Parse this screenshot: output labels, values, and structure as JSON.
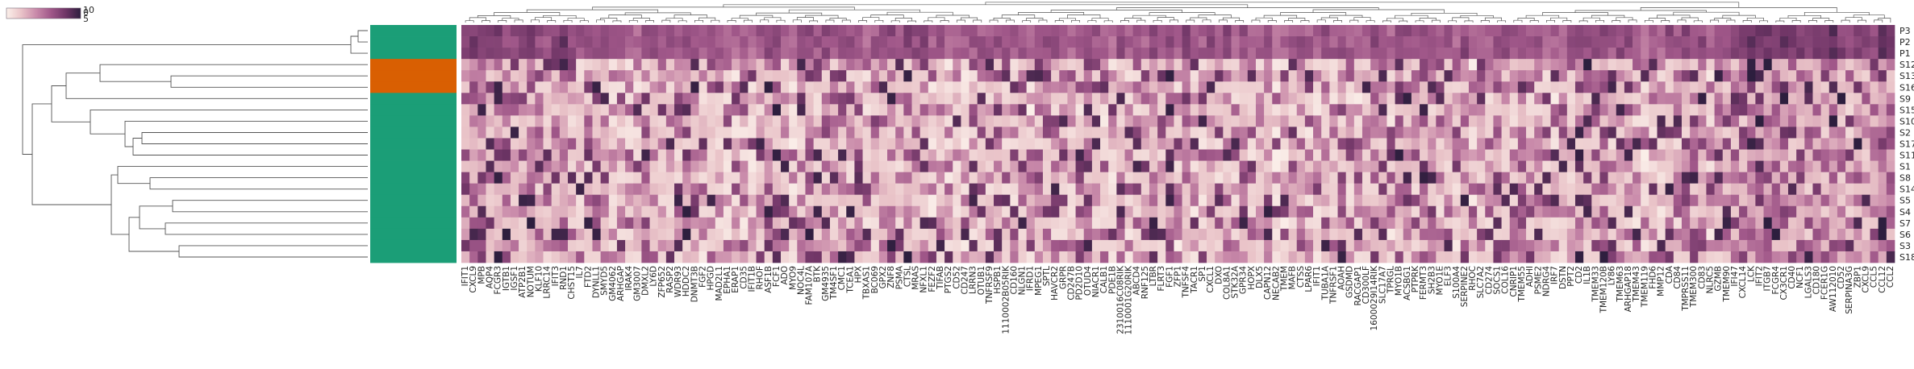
{
  "chart_data": {
    "type": "heatmap",
    "title": "",
    "xlabel": "",
    "ylabel": "",
    "colormap": [
      "#fbf0ea",
      "#e9c3c8",
      "#c98aaa",
      "#a05789",
      "#6f3566",
      "#2d1e3e"
    ],
    "colorbar": {
      "ticks": [
        "10",
        "0",
        "5"
      ],
      "range": [
        0,
        10
      ]
    },
    "row_groups": {
      "colors": [
        "#1b9e77",
        "#d95f02"
      ]
    },
    "rows": [
      {
        "label": "P3",
        "group": 0
      },
      {
        "label": "P2",
        "group": 0
      },
      {
        "label": "P1",
        "group": 0
      },
      {
        "label": "S12",
        "group": 1
      },
      {
        "label": "S13",
        "group": 1
      },
      {
        "label": "S16",
        "group": 1
      },
      {
        "label": "S9",
        "group": 0
      },
      {
        "label": "S15",
        "group": 0
      },
      {
        "label": "S10",
        "group": 0
      },
      {
        "label": "S2",
        "group": 0
      },
      {
        "label": "S17",
        "group": 0
      },
      {
        "label": "S11",
        "group": 0
      },
      {
        "label": "S1",
        "group": 0
      },
      {
        "label": "S8",
        "group": 0
      },
      {
        "label": "S14",
        "group": 0
      },
      {
        "label": "S5",
        "group": 0
      },
      {
        "label": "S4",
        "group": 0
      },
      {
        "label": "S7",
        "group": 0
      },
      {
        "label": "S6",
        "group": 0
      },
      {
        "label": "S3",
        "group": 0
      },
      {
        "label": "S18",
        "group": 0
      }
    ],
    "x_tick_labels": [
      "IFIT1",
      "CXCL9",
      "MPB",
      "AQP4",
      "FCGR3",
      "IGTB1",
      "IGSF1",
      "ATP2B1",
      "NOTUM",
      "KLF10",
      "LRRC14",
      "IFIT3",
      "RND1",
      "CHST15",
      "IL7",
      "FTD2",
      "DYNLL1",
      "SMYD5",
      "GM4062",
      "ARHGAP",
      "IRAK4",
      "GM3007",
      "DMXL2",
      "LY6D",
      "ZFP652",
      "RASP2",
      "WDR93",
      "HDDC2",
      "DNMT3B",
      "FGF2",
      "HPGD",
      "MAD2L1",
      "EPHA1",
      "ERAP1",
      "CD35",
      "IFIT1B",
      "RHOF",
      "ASF1B",
      "FCF1",
      "ADO",
      "MYO9",
      "NOC4L",
      "FAM107A",
      "BTK",
      "GM4935",
      "TM4SF1",
      "CMC1",
      "TCEA1",
      "HPX",
      "TBXAS1",
      "BC069",
      "GPX2",
      "ZNF8",
      "PSMA",
      "CTSL",
      "MRAS",
      "NFXL1",
      "FEZF2",
      "TIFAB",
      "PTGS2",
      "CD52",
      "CD247",
      "LRRN3",
      "OTUB1",
      "TNFRSF9",
      "HSPB1",
      "1110002B05RIK",
      "CD160",
      "NLGN1",
      "IFRD1",
      "MPEG1",
      "SPTL",
      "HAVCR2",
      "GRPR",
      "CD247B",
      "PD2D10",
      "OTUD4",
      "NIACR1",
      "CALB1",
      "PDE1B",
      "2310016C08RIK",
      "1110001G20RIK",
      "ABCD4",
      "RNF125",
      "LTBR",
      "FLRT3",
      "FGF1",
      "ZFP1",
      "TNFSF4",
      "TACR1",
      "SP1",
      "CXCL1",
      "DXO",
      "COL8A1",
      "STK32A",
      "GPR34",
      "HOPX",
      "DLX5",
      "CAPN12",
      "NECAB2",
      "TMEM",
      "MAFB",
      "CTSS",
      "LPAR6",
      "IFIT1",
      "TUBA1A",
      "TNFRSF1",
      "AOAH",
      "GSDMD",
      "RACGAP1",
      "CD300LF",
      "1600029I14RIK",
      "SLC17A7",
      "TPRGL",
      "MYO1B",
      "ACSBG1",
      "PTPRK",
      "FERMT3",
      "SH2B3",
      "MYO1E",
      "ELF3",
      "S100A4",
      "SERPINE2",
      "RHOC",
      "SLC7A2",
      "CD274",
      "SOCS1",
      "COL16",
      "CNRIP1",
      "TMEM55",
      "ADHI",
      "PSME2",
      "NDRG4",
      "IRF7",
      "DSTN",
      "PPT2",
      "CD2",
      "IL1B",
      "TMEM33",
      "TMEM120B",
      "LY86",
      "TMEM63",
      "ARHGAP18",
      "TMEM43",
      "TMEM119",
      "FHD6",
      "MMP12",
      "CDA",
      "CD84",
      "TMPRSS11",
      "TMEM300",
      "CD83",
      "NLRC5",
      "GZMB",
      "TMEM90",
      "IFI47",
      "CXCL14",
      "LCK",
      "IFIT2",
      "ITGB7",
      "FCGR4",
      "CX3CR1",
      "CD40",
      "NCF1",
      "LGALS3",
      "CD180",
      "FCER1G",
      "AW112010",
      "CD52",
      "SERPINA3G",
      "ZBP1",
      "CXCL9",
      "CCL5",
      "CCL12",
      "CCL2"
    ]
  }
}
